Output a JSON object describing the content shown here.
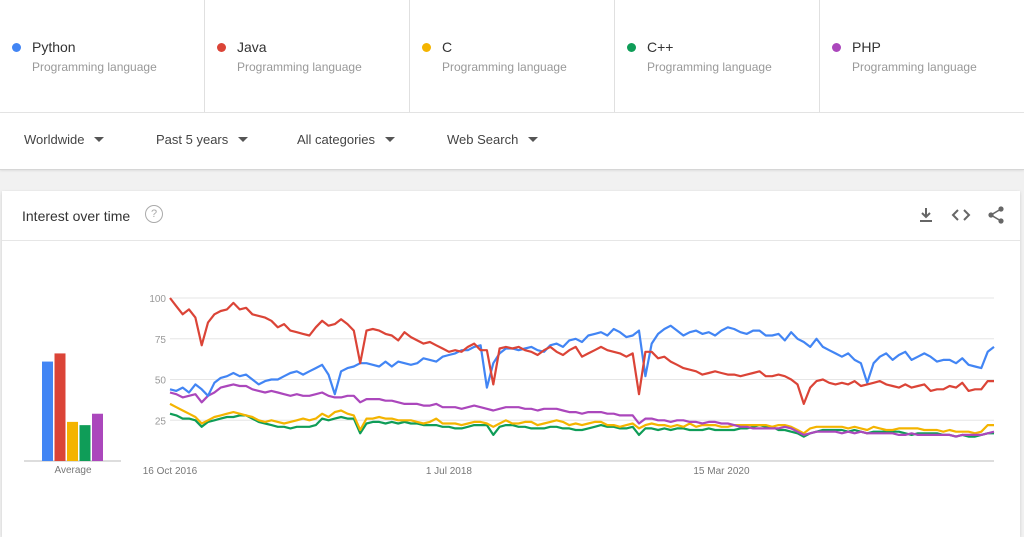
{
  "terms": [
    {
      "name": "Python",
      "sub": "Programming language",
      "color": "#4285f4"
    },
    {
      "name": "Java",
      "sub": "Programming language",
      "color": "#db4437"
    },
    {
      "name": "C",
      "sub": "Programming language",
      "color": "#f4b400"
    },
    {
      "name": "C++",
      "sub": "Programming language",
      "color": "#0f9d58"
    },
    {
      "name": "PHP",
      "sub": "Programming language",
      "color": "#ab47bc"
    }
  ],
  "filters": {
    "region": "Worldwide",
    "period": "Past 5 years",
    "category": "All categories",
    "search_type": "Web Search"
  },
  "card": {
    "title": "Interest over time",
    "help": "?",
    "icons": [
      "download-icon",
      "embed-icon",
      "share-icon"
    ]
  },
  "chart_data": {
    "type": "line",
    "ylim": [
      0,
      100
    ],
    "yticks": [
      25,
      50,
      75,
      100
    ],
    "xtick_labels": [
      "16 Oct 2016",
      "1 Jul 2018",
      "15 Mar 2020"
    ],
    "average_label": "Average",
    "averages": [
      {
        "name": "Python",
        "value": 61
      },
      {
        "name": "Java",
        "value": 66
      },
      {
        "name": "C",
        "value": 24
      },
      {
        "name": "C++",
        "value": 22
      },
      {
        "name": "PHP",
        "value": 29
      }
    ],
    "x_weeks": [
      0,
      2,
      4,
      6,
      8,
      10,
      12,
      14,
      16,
      18,
      20,
      22,
      24,
      26,
      28,
      30,
      32,
      34,
      36,
      38,
      40,
      42,
      44,
      46,
      48,
      50,
      52,
      54,
      56,
      58,
      60,
      62,
      64,
      66,
      68,
      70,
      72,
      74,
      76,
      78,
      80,
      82,
      84,
      86,
      88,
      90,
      92,
      94,
      96,
      98,
      100,
      102,
      104,
      106,
      108,
      110,
      112,
      114,
      116,
      118,
      120,
      122,
      124,
      126,
      128,
      130,
      132,
      134,
      136,
      138,
      140,
      142,
      144,
      146,
      148,
      150,
      152,
      154,
      156,
      158,
      160,
      162,
      164,
      166,
      168,
      170,
      172,
      174,
      176,
      178,
      180,
      182,
      184,
      186,
      188,
      190,
      192,
      194,
      196,
      198,
      200,
      202,
      204,
      206,
      208,
      210,
      212,
      214,
      216,
      218,
      220,
      222,
      224,
      226,
      228,
      230,
      232,
      234,
      236,
      238,
      240,
      242,
      244,
      246,
      248,
      250,
      252,
      254,
      256,
      258,
      260
    ],
    "series": [
      {
        "name": "Python",
        "values": [
          44,
          43,
          45,
          42,
          47,
          44,
          40,
          48,
          51,
          52,
          54,
          52,
          53,
          50,
          47,
          49,
          50,
          50,
          52,
          54,
          55,
          53,
          55,
          57,
          59,
          53,
          41,
          55,
          57,
          58,
          60,
          60,
          59,
          58,
          61,
          58,
          61,
          60,
          59,
          60,
          63,
          62,
          61,
          64,
          65,
          66,
          68,
          68,
          70,
          71,
          45,
          60,
          66,
          69,
          69,
          68,
          69,
          70,
          68,
          67,
          71,
          72,
          70,
          74,
          75,
          73,
          77,
          78,
          79,
          77,
          81,
          79,
          76,
          77,
          80,
          52,
          72,
          78,
          81,
          83,
          80,
          77,
          79,
          80,
          78,
          79,
          77,
          80,
          82,
          81,
          79,
          78,
          80,
          80,
          77,
          77,
          78,
          74,
          79,
          75,
          73,
          70,
          75,
          70,
          68,
          66,
          64,
          66,
          62,
          60,
          48,
          60,
          64,
          66,
          62,
          65,
          67,
          62,
          64,
          66,
          64,
          61,
          62,
          62,
          60,
          63,
          59,
          58,
          57,
          67,
          70
        ]
      },
      {
        "name": "Java",
        "values": [
          100,
          95,
          90,
          93,
          88,
          71,
          85,
          90,
          92,
          93,
          97,
          93,
          94,
          90,
          89,
          88,
          86,
          82,
          84,
          80,
          79,
          78,
          77,
          82,
          86,
          83,
          84,
          87,
          84,
          80,
          60,
          80,
          81,
          80,
          78,
          77,
          74,
          79,
          76,
          74,
          72,
          73,
          71,
          69,
          67,
          68,
          67,
          70,
          72,
          68,
          68,
          47,
          69,
          70,
          69,
          70,
          68,
          67,
          65,
          68,
          70,
          67,
          65,
          68,
          70,
          64,
          66,
          68,
          70,
          68,
          67,
          66,
          64,
          66,
          41,
          67,
          67,
          63,
          64,
          61,
          59,
          57,
          56,
          55,
          53,
          54,
          55,
          54,
          53,
          53,
          52,
          53,
          54,
          55,
          52,
          52,
          53,
          52,
          50,
          47,
          35,
          45,
          49,
          50,
          48,
          47,
          48,
          47,
          49,
          46,
          47,
          48,
          49,
          47,
          46,
          45,
          47,
          45,
          46,
          47,
          43,
          44,
          44,
          46,
          45,
          48,
          43,
          44,
          44,
          49,
          49
        ]
      },
      {
        "name": "C",
        "values": [
          35,
          33,
          31,
          29,
          27,
          23,
          25,
          27,
          28,
          29,
          30,
          29,
          28,
          27,
          25,
          24,
          25,
          24,
          23,
          24,
          25,
          26,
          25,
          26,
          29,
          27,
          30,
          31,
          29,
          28,
          19,
          26,
          26,
          27,
          26,
          26,
          25,
          25,
          25,
          24,
          23,
          24,
          26,
          23,
          23,
          23,
          22,
          23,
          24,
          24,
          23,
          21,
          23,
          25,
          23,
          23,
          24,
          24,
          22,
          23,
          24,
          25,
          24,
          22,
          23,
          22,
          23,
          24,
          24,
          22,
          22,
          21,
          22,
          23,
          20,
          22,
          23,
          22,
          22,
          21,
          22,
          21,
          23,
          21,
          22,
          22,
          22,
          21,
          21,
          22,
          22,
          22,
          22,
          22,
          22,
          21,
          22,
          22,
          21,
          19,
          17,
          20,
          21,
          21,
          21,
          21,
          21,
          20,
          21,
          20,
          19,
          21,
          20,
          19,
          19,
          20,
          20,
          20,
          20,
          19,
          19,
          19,
          18,
          19,
          18,
          18,
          18,
          17,
          18,
          22,
          22
        ]
      },
      {
        "name": "C++",
        "values": [
          29,
          28,
          26,
          26,
          25,
          21,
          24,
          25,
          26,
          27,
          27,
          28,
          28,
          26,
          24,
          23,
          22,
          21,
          21,
          20,
          21,
          21,
          21,
          22,
          26,
          25,
          26,
          27,
          26,
          26,
          17,
          23,
          24,
          24,
          23,
          24,
          23,
          24,
          23,
          23,
          22,
          22,
          22,
          21,
          21,
          20,
          20,
          21,
          22,
          22,
          22,
          16,
          21,
          22,
          22,
          21,
          21,
          20,
          20,
          20,
          21,
          21,
          20,
          20,
          19,
          19,
          20,
          21,
          22,
          21,
          21,
          20,
          20,
          21,
          16,
          20,
          20,
          19,
          20,
          19,
          20,
          20,
          19,
          19,
          19,
          20,
          19,
          19,
          19,
          19,
          20,
          20,
          21,
          22,
          21,
          21,
          19,
          19,
          18,
          17,
          15,
          17,
          18,
          19,
          19,
          19,
          19,
          18,
          19,
          18,
          17,
          18,
          18,
          18,
          18,
          18,
          17,
          16,
          17,
          17,
          17,
          17,
          16,
          16,
          15,
          16,
          15,
          15,
          16,
          17,
          17
        ]
      },
      {
        "name": "PHP",
        "values": [
          42,
          41,
          39,
          40,
          41,
          36,
          40,
          42,
          45,
          46,
          47,
          46,
          46,
          44,
          43,
          42,
          43,
          42,
          41,
          40,
          41,
          40,
          40,
          41,
          42,
          40,
          39,
          39,
          40,
          40,
          36,
          38,
          38,
          38,
          37,
          37,
          36,
          35,
          35,
          35,
          34,
          34,
          35,
          33,
          33,
          33,
          32,
          33,
          34,
          33,
          32,
          31,
          32,
          33,
          33,
          33,
          32,
          32,
          31,
          32,
          32,
          32,
          31,
          30,
          30,
          29,
          30,
          30,
          30,
          29,
          29,
          28,
          28,
          28,
          23,
          26,
          26,
          25,
          25,
          24,
          25,
          25,
          24,
          24,
          23,
          24,
          24,
          23,
          23,
          22,
          21,
          21,
          20,
          20,
          20,
          20,
          20,
          21,
          20,
          18,
          16,
          17,
          18,
          18,
          18,
          18,
          17,
          18,
          17,
          18,
          17,
          17,
          17,
          17,
          17,
          16,
          16,
          17,
          16,
          16,
          16,
          16,
          16,
          16,
          15,
          16,
          16,
          16,
          16,
          17,
          18
        ]
      }
    ]
  }
}
